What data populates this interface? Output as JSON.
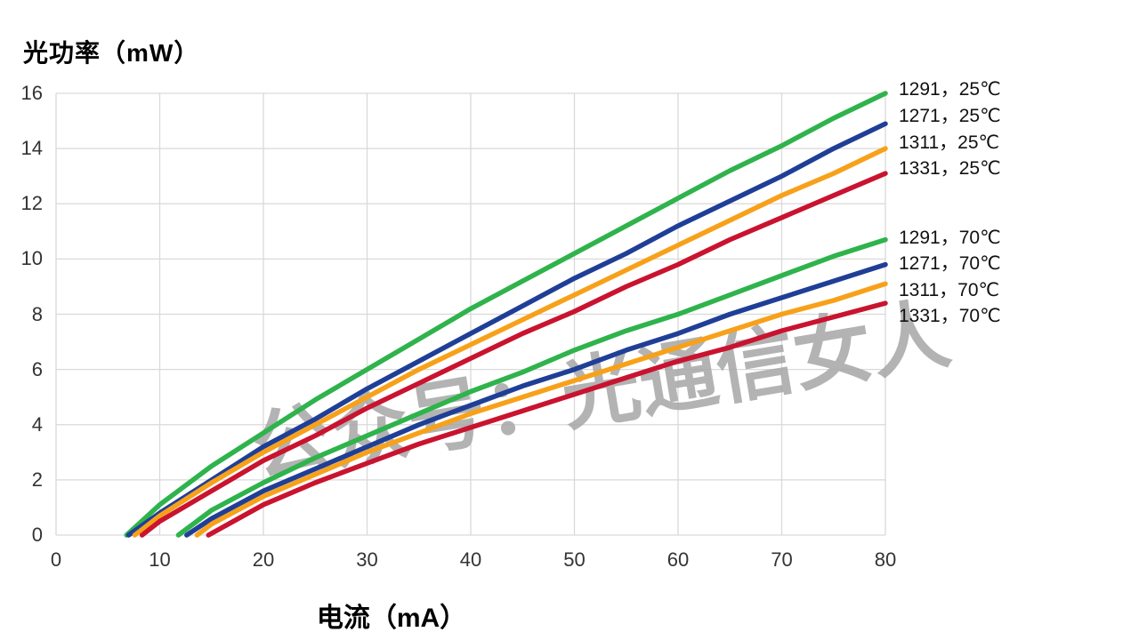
{
  "chart_data": {
    "type": "line",
    "title": "",
    "ylabel": "光功率（mW）",
    "xlabel": "电流（mA）",
    "xlim": [
      0,
      80
    ],
    "ylim": [
      0,
      16
    ],
    "x_ticks": [
      0,
      10,
      20,
      30,
      40,
      50,
      60,
      70,
      80
    ],
    "y_ticks": [
      0,
      2,
      4,
      6,
      8,
      10,
      12,
      14,
      16
    ],
    "grid": true,
    "legend_position": "right-of-curve-ends",
    "series": [
      {
        "name": "1291，25℃",
        "wavelength": "1291",
        "temperature": "25℃",
        "color": "#2fb34c",
        "points": [
          [
            6.8,
            0
          ],
          [
            10,
            1.1
          ],
          [
            15,
            2.5
          ],
          [
            20,
            3.7
          ],
          [
            25,
            4.9
          ],
          [
            30,
            6.0
          ],
          [
            35,
            7.1
          ],
          [
            40,
            8.2
          ],
          [
            45,
            9.2
          ],
          [
            50,
            10.2
          ],
          [
            55,
            11.2
          ],
          [
            60,
            12.2
          ],
          [
            65,
            13.2
          ],
          [
            70,
            14.1
          ],
          [
            75,
            15.1
          ],
          [
            80,
            16.0
          ]
        ]
      },
      {
        "name": "1271，25℃",
        "wavelength": "1271",
        "temperature": "25℃",
        "color": "#1f3f97",
        "points": [
          [
            7.0,
            0
          ],
          [
            10,
            0.8
          ],
          [
            15,
            2.0
          ],
          [
            20,
            3.2
          ],
          [
            25,
            4.2
          ],
          [
            30,
            5.3
          ],
          [
            35,
            6.3
          ],
          [
            40,
            7.3
          ],
          [
            45,
            8.3
          ],
          [
            50,
            9.3
          ],
          [
            55,
            10.2
          ],
          [
            60,
            11.2
          ],
          [
            65,
            12.1
          ],
          [
            70,
            13.0
          ],
          [
            75,
            14.0
          ],
          [
            80,
            14.9
          ]
        ]
      },
      {
        "name": "1311，25℃",
        "wavelength": "1311",
        "temperature": "25℃",
        "color": "#f7a11a",
        "points": [
          [
            7.6,
            0
          ],
          [
            10,
            0.7
          ],
          [
            15,
            1.9
          ],
          [
            20,
            3.0
          ],
          [
            25,
            4.0
          ],
          [
            30,
            5.0
          ],
          [
            35,
            6.0
          ],
          [
            40,
            6.9
          ],
          [
            45,
            7.8
          ],
          [
            50,
            8.7
          ],
          [
            55,
            9.6
          ],
          [
            60,
            10.5
          ],
          [
            65,
            11.4
          ],
          [
            70,
            12.3
          ],
          [
            75,
            13.1
          ],
          [
            80,
            14.0
          ]
        ]
      },
      {
        "name": "1331，25℃",
        "wavelength": "1331",
        "temperature": "25℃",
        "color": "#c9132f",
        "points": [
          [
            8.3,
            0
          ],
          [
            10,
            0.5
          ],
          [
            15,
            1.6
          ],
          [
            20,
            2.7
          ],
          [
            25,
            3.6
          ],
          [
            30,
            4.6
          ],
          [
            35,
            5.5
          ],
          [
            40,
            6.4
          ],
          [
            45,
            7.3
          ],
          [
            50,
            8.1
          ],
          [
            55,
            9.0
          ],
          [
            60,
            9.8
          ],
          [
            65,
            10.7
          ],
          [
            70,
            11.5
          ],
          [
            75,
            12.3
          ],
          [
            80,
            13.1
          ]
        ]
      },
      {
        "name": "1291，70℃",
        "wavelength": "1291",
        "temperature": "70℃",
        "color": "#2fb34c",
        "points": [
          [
            11.8,
            0
          ],
          [
            15,
            0.9
          ],
          [
            20,
            1.9
          ],
          [
            25,
            2.8
          ],
          [
            30,
            3.6
          ],
          [
            35,
            4.4
          ],
          [
            40,
            5.2
          ],
          [
            45,
            5.9
          ],
          [
            50,
            6.7
          ],
          [
            55,
            7.4
          ],
          [
            60,
            8.0
          ],
          [
            65,
            8.7
          ],
          [
            70,
            9.4
          ],
          [
            75,
            10.1
          ],
          [
            80,
            10.7
          ]
        ]
      },
      {
        "name": "1271，70℃",
        "wavelength": "1271",
        "temperature": "70℃",
        "color": "#1f3f97",
        "points": [
          [
            12.6,
            0
          ],
          [
            15,
            0.6
          ],
          [
            20,
            1.6
          ],
          [
            25,
            2.4
          ],
          [
            30,
            3.2
          ],
          [
            35,
            4.0
          ],
          [
            40,
            4.7
          ],
          [
            45,
            5.4
          ],
          [
            50,
            6.0
          ],
          [
            55,
            6.7
          ],
          [
            60,
            7.3
          ],
          [
            65,
            8.0
          ],
          [
            70,
            8.6
          ],
          [
            75,
            9.2
          ],
          [
            80,
            9.8
          ]
        ]
      },
      {
        "name": "1311，70℃",
        "wavelength": "1311",
        "temperature": "70℃",
        "color": "#f7a11a",
        "points": [
          [
            13.6,
            0
          ],
          [
            15,
            0.4
          ],
          [
            20,
            1.4
          ],
          [
            25,
            2.2
          ],
          [
            30,
            3.0
          ],
          [
            35,
            3.7
          ],
          [
            40,
            4.4
          ],
          [
            45,
            5.0
          ],
          [
            50,
            5.6
          ],
          [
            55,
            6.2
          ],
          [
            60,
            6.8
          ],
          [
            65,
            7.4
          ],
          [
            70,
            8.0
          ],
          [
            75,
            8.5
          ],
          [
            80,
            9.1
          ]
        ]
      },
      {
        "name": "1331，70℃",
        "wavelength": "1331",
        "temperature": "70℃",
        "color": "#c9132f",
        "points": [
          [
            14.7,
            0
          ],
          [
            20,
            1.1
          ],
          [
            25,
            1.9
          ],
          [
            30,
            2.6
          ],
          [
            35,
            3.3
          ],
          [
            40,
            3.9
          ],
          [
            45,
            4.5
          ],
          [
            50,
            5.1
          ],
          [
            55,
            5.7
          ],
          [
            60,
            6.3
          ],
          [
            65,
            6.8
          ],
          [
            70,
            7.4
          ],
          [
            75,
            7.9
          ],
          [
            80,
            8.4
          ]
        ]
      }
    ]
  },
  "watermark": {
    "text": "公众号：光通信女人",
    "color": "#a6a6a6"
  },
  "colors": {
    "grid": "#d9d9d9",
    "tick_label": "#333333",
    "series_green": "#2fb34c",
    "series_blue": "#1f3f97",
    "series_orange": "#f7a11a",
    "series_red": "#c9132f"
  }
}
